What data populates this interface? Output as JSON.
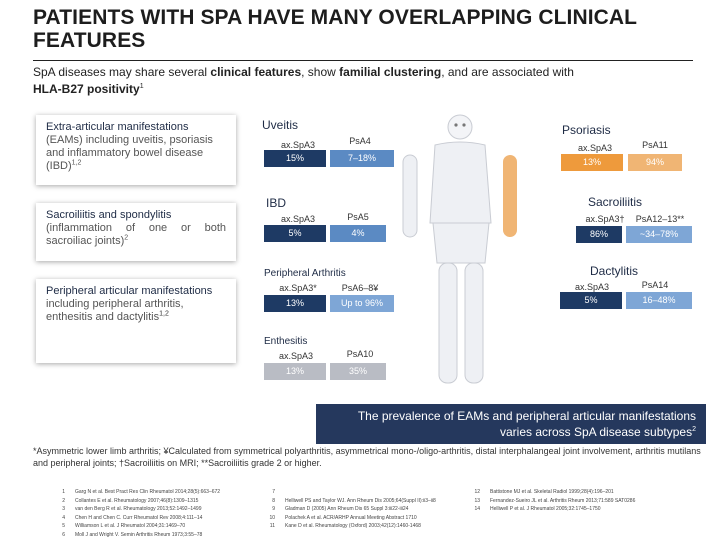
{
  "title": "PATIENTS WITH SPA HAVE MANY OVERLAPPING CLINICAL FEATURES",
  "subtitle": {
    "p1": "SpA diseases may share several ",
    "b1": "clinical features",
    "p2": ", show ",
    "b2": "familial clustering",
    "p3": ", and are associated with ",
    "b3": "HLA-B27 positivity",
    "sup": "1"
  },
  "left_cards": {
    "extra": {
      "head": "Extra-articular manifestations",
      "text": "(EAMs) including uveitis, psoriasis and inflammatory bowel disease (IBD)",
      "sup": "1,2"
    },
    "sacro": {
      "head": "Sacroiliitis and spondylitis",
      "text": "(inflammation of one or both sacroiliac joints)",
      "sup": "2"
    },
    "peripheral": {
      "head": "Peripheral articular manifestations",
      "text": " including peripheral arthritis, enthesitis and dactylitis",
      "sup": "1,2"
    }
  },
  "regions": {
    "uveitis": {
      "label": "Uveitis",
      "a_label": "ax.SpA3",
      "b_label": "PsA4",
      "a_val": "15%",
      "b_val": "7–18%"
    },
    "ibd": {
      "label": "IBD",
      "a_label": "ax.SpA3",
      "b_label": "PsA5",
      "a_val": "5%",
      "b_val": "4%"
    },
    "periph": {
      "label": "Peripheral Arthritis",
      "a_label": "ax.SpA3*",
      "b_label": "PsA6–8¥",
      "a_val": "13%",
      "b_val": "Up to 96%"
    },
    "enth": {
      "label": "Enthesitis",
      "a_label": "ax.SpA3",
      "b_label": "PsA10",
      "a_val": "13%",
      "b_val": "35%"
    },
    "psoriasis": {
      "label": "Psoriasis",
      "a_label": "ax.SpA3",
      "b_label": "PsA11",
      "a_val": "13%",
      "b_val": "94%"
    },
    "sacro": {
      "label": "Sacroiliitis",
      "a_label": "ax.SpA3†",
      "b_label": "PsA12–13**",
      "a_val": "86%",
      "b_val": "~34–78%"
    },
    "dact": {
      "label": "Dactylitis",
      "a_label": "ax.SpA3",
      "b_label": "PsA14",
      "a_val": "5%",
      "b_val": "16–48%"
    }
  },
  "callout": {
    "text": "The prevalence of EAMs and peripheral articular manifestations varies across SpA disease subtypes",
    "sup": "2"
  },
  "footnote": "*Asymmetric lower limb arthritis; ¥Calculated from symmetrical polyarthritis, asymmetrical mono-/oligo-arthritis, distal interphalangeal joint involvement, arthritis mutilans and peripheral joints; †Sacroiliitis on MRI; **Sacroiliitis grade 2 or higher.",
  "references": {
    "col1": [
      {
        "n": "1",
        "t": "Garg N et al. Best Pract Res Clin Rheumatol 2014;28(5):663–672"
      },
      {
        "n": "2",
        "t": "Collantes E et al. Rheumatology 2007;46(8):1309–1315"
      },
      {
        "n": "3",
        "t": "van den Berg R et al. Rheumatology 2013;52:1492–1499"
      },
      {
        "n": "4",
        "t": "Chen H and Chen C. Curr Rheumatol Rev 2008;4:111–14"
      },
      {
        "n": "5",
        "t": "Williamson L et al. J Rheumatol 2004;31:1469–70"
      },
      {
        "n": "6",
        "t": "Moll J and Wright V. Semin Arthritis Rheum 1973;3:55–78"
      }
    ],
    "col2": [
      {
        "n": "7",
        "t": ""
      },
      {
        "n": "8",
        "t": "Helliwell PS and Taylor WJ. Ann Rheum Dis 2005;64(Suppl II):ii3–ii8"
      },
      {
        "n": "9",
        "t": "Gladman D (2005) Ann Rheum Dis 65 Suppl 3:iii22-iii24"
      },
      {
        "n": "10",
        "t": "Polachek A et al. ACR/ARHP Annual Meeting Abstract 1710"
      },
      {
        "n": "11",
        "t": "Kane D et al. Rheumatology (Oxford) 2003;42(12):1460-1468"
      }
    ],
    "col3": [
      {
        "n": "12",
        "t": "Battistone MJ et al. Skeletal Radiol 1999;28(4):196–201"
      },
      {
        "n": "13",
        "t": "Fernandez-Sueiro JL et al. Arthritis Rheum 2013;71:589 SAT0286"
      },
      {
        "n": "14",
        "t": "Helliwell P et al. J Rheumatol 2005;32:1745–1750"
      }
    ]
  },
  "colors": {
    "navy": "#1e3a64",
    "blue": "#5b8ac3",
    "orange": "#ee9a3c",
    "grey": "#b9bcc4"
  }
}
